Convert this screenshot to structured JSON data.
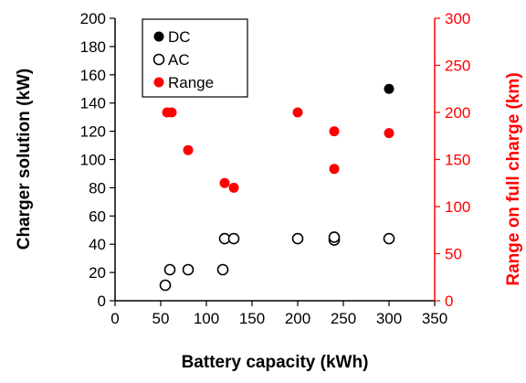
{
  "chart_data": {
    "type": "scatter",
    "xlabel": "Battery capacity (kWh)",
    "ylabel": "Charger solution (kW)",
    "y2label": "Range on full charge (km)",
    "xlim": [
      0,
      350
    ],
    "ylim": [
      0,
      200
    ],
    "y2lim": [
      0,
      300
    ],
    "x_ticks": [
      "0",
      "50",
      "100",
      "150",
      "200",
      "250",
      "300",
      "350"
    ],
    "y_ticks": [
      "0",
      "20",
      "40",
      "60",
      "80",
      "100",
      "120",
      "140",
      "160",
      "180",
      "200"
    ],
    "y2_ticks": [
      "0",
      "50",
      "100",
      "150",
      "200",
      "250",
      "300"
    ],
    "grid": false,
    "legend_position": "top-left",
    "colors": {
      "dc": "#000000",
      "ac": "#000000",
      "range": "#ff0000",
      "right_axis": "#ff0000"
    },
    "series": [
      {
        "name": "DC",
        "axis": "left",
        "marker": "filled-circle",
        "points": [
          [
            300,
            150
          ]
        ]
      },
      {
        "name": "AC",
        "axis": "left",
        "marker": "open-circle",
        "points": [
          [
            55,
            11
          ],
          [
            60,
            22
          ],
          [
            80,
            22
          ],
          [
            118,
            22
          ],
          [
            120,
            44
          ],
          [
            130,
            44
          ],
          [
            200,
            44
          ],
          [
            240,
            43
          ],
          [
            240,
            45
          ],
          [
            300,
            44
          ]
        ]
      },
      {
        "name": "Range",
        "axis": "right",
        "marker": "filled-circle",
        "points": [
          [
            57,
            200
          ],
          [
            62,
            200
          ],
          [
            80,
            160
          ],
          [
            120,
            125
          ],
          [
            130,
            120
          ],
          [
            200,
            200
          ],
          [
            240,
            180
          ],
          [
            240,
            140
          ],
          [
            300,
            178
          ]
        ]
      }
    ]
  }
}
